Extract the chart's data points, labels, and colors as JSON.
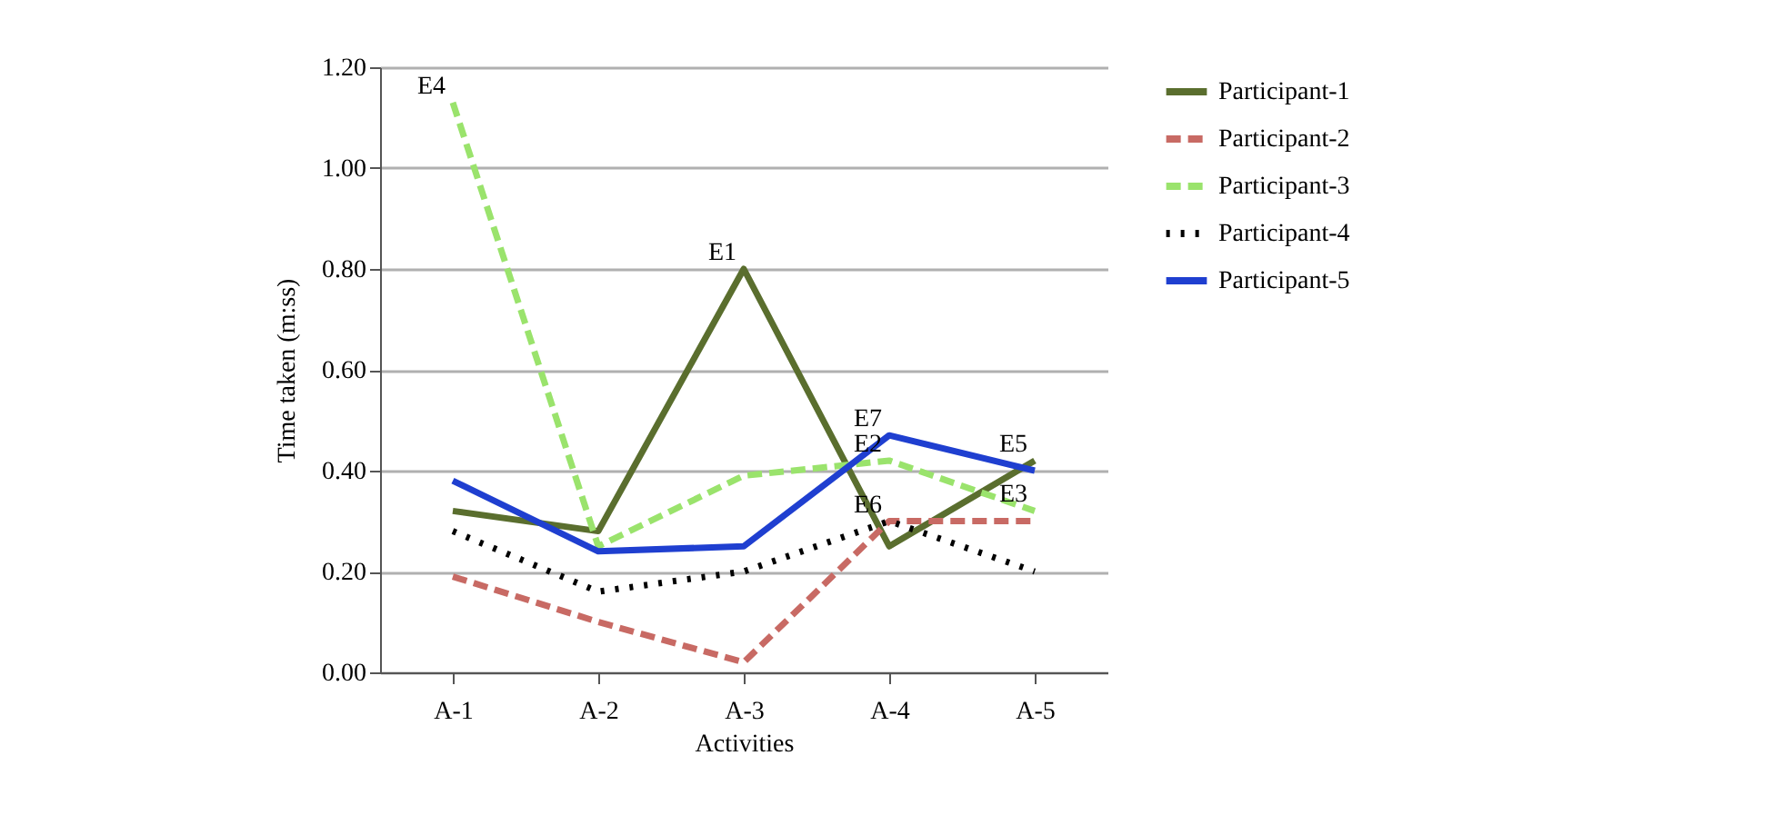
{
  "chart_data": {
    "type": "line",
    "xlabel": "Activities",
    "ylabel": "Time taken (m:ss)",
    "categories": [
      "A-1",
      "A-2",
      "A-3",
      "A-4",
      "A-5"
    ],
    "series": [
      {
        "name": "Participant-1",
        "color": "#5a6e2e",
        "line_style": "solid",
        "values": [
          0.32,
          0.28,
          0.8,
          0.25,
          0.42
        ]
      },
      {
        "name": "Participant-2",
        "color": "#c86a64",
        "line_style": "dashed",
        "values": [
          0.19,
          0.1,
          0.02,
          0.3,
          0.3
        ]
      },
      {
        "name": "Participant-3",
        "color": "#9ae36c",
        "line_style": "dashed",
        "values": [
          1.13,
          0.25,
          0.39,
          0.42,
          0.32
        ]
      },
      {
        "name": "Participant-4",
        "color": "#000000",
        "line_style": "dotted",
        "values": [
          0.28,
          0.16,
          0.2,
          0.3,
          0.2
        ]
      },
      {
        "name": "Participant-5",
        "color": "#1f3fd0",
        "line_style": "solid",
        "values": [
          0.38,
          0.24,
          0.25,
          0.47,
          0.4
        ]
      }
    ],
    "ylim": [
      0,
      1.2
    ],
    "yticks": [
      {
        "value": 0,
        "label": "0.00"
      },
      {
        "value": 0.2,
        "label": "0.20"
      },
      {
        "value": 0.4,
        "label": "0.40"
      },
      {
        "value": 0.6,
        "label": "0.60"
      },
      {
        "value": 0.8,
        "label": "0.80"
      },
      {
        "value": 1.0,
        "label": "1.00"
      },
      {
        "value": 1.2,
        "label": "1.20"
      }
    ],
    "annotations": [
      {
        "text": "E4",
        "x": "A-1",
        "y": 1.13
      },
      {
        "text": "E1",
        "x": "A-3",
        "y": 0.8
      },
      {
        "text": "E7",
        "x": "A-4",
        "y": 0.47
      },
      {
        "text": "E2",
        "x": "A-4",
        "y": 0.42
      },
      {
        "text": "E6",
        "x": "A-4",
        "y": 0.3
      },
      {
        "text": "E5",
        "x": "A-5",
        "y": 0.42
      },
      {
        "text": "E3",
        "x": "A-5",
        "y": 0.32
      }
    ],
    "grid": "y",
    "legend": "right",
    "marker": "none"
  }
}
